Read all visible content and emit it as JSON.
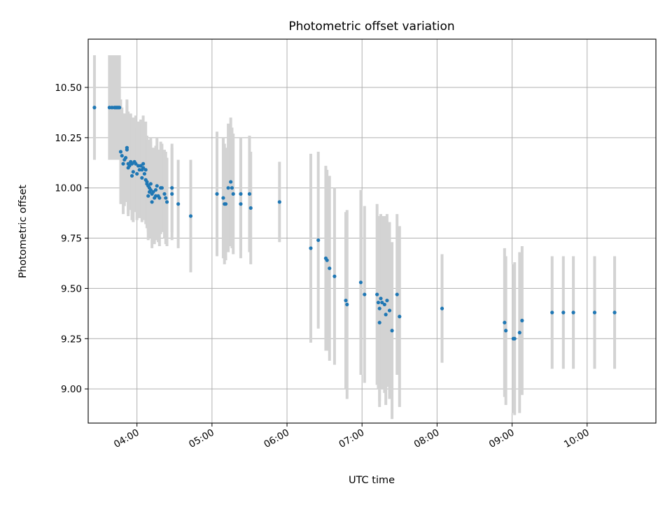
{
  "chart_data": {
    "type": "scatter",
    "title": "Photometric offset variation",
    "xlabel": "UTC time",
    "ylabel": "Photometric offset",
    "x_type": "time",
    "xlim": [
      "03:21",
      "10:55"
    ],
    "ylim": [
      8.83,
      10.74
    ],
    "x_ticks": [
      "04:00",
      "05:00",
      "06:00",
      "07:00",
      "08:00",
      "09:00",
      "10:00"
    ],
    "y_ticks": [
      9.0,
      9.25,
      9.5,
      9.75,
      10.0,
      10.25,
      10.5
    ],
    "y_tick_labels": [
      "9.00",
      "9.25",
      "9.50",
      "9.75",
      "10.00",
      "10.25",
      "10.50"
    ],
    "grid": true,
    "colors": {
      "points": "#1f77b4",
      "error_bars": "#d3d3d3",
      "grid": "#b0b0b0"
    },
    "series": [
      {
        "points": [
          [
            "03:26",
            10.4,
            0.26
          ],
          [
            "03:38",
            10.4,
            0.26
          ],
          [
            "03:40",
            10.4,
            0.26
          ],
          [
            "03:42",
            10.4,
            0.26
          ],
          [
            "03:43",
            10.4,
            0.26
          ],
          [
            "03:44",
            10.4,
            0.26
          ],
          [
            "03:45",
            10.4,
            0.26
          ],
          [
            "03:46",
            10.4,
            0.26
          ],
          [
            "03:47",
            10.18,
            0.26
          ],
          [
            "03:48",
            10.16,
            0.24
          ],
          [
            "03:49",
            10.12,
            0.25
          ],
          [
            "03:50",
            10.14,
            0.23
          ],
          [
            "03:51",
            10.15,
            0.22
          ],
          [
            "03:52",
            10.2,
            0.24
          ],
          [
            "03:52",
            10.19,
            0.22
          ],
          [
            "03:53",
            10.12,
            0.26
          ],
          [
            "03:53",
            10.1,
            0.23
          ],
          [
            "03:54",
            10.11,
            0.21
          ],
          [
            "03:55",
            10.13,
            0.24
          ],
          [
            "03:56",
            10.06,
            0.22
          ],
          [
            "03:56",
            10.12,
            0.23
          ],
          [
            "03:57",
            10.08,
            0.25
          ],
          [
            "03:58",
            10.13,
            0.22
          ],
          [
            "03:59",
            10.12,
            0.24
          ],
          [
            "04:00",
            10.07,
            0.23
          ],
          [
            "04:01",
            10.11,
            0.22
          ],
          [
            "04:02",
            10.09,
            0.24
          ],
          [
            "04:03",
            10.11,
            0.23
          ],
          [
            "04:04",
            10.05,
            0.22
          ],
          [
            "04:04",
            10.09,
            0.23
          ],
          [
            "04:05",
            10.12,
            0.24
          ],
          [
            "04:05",
            10.1,
            0.22
          ],
          [
            "04:06",
            10.07,
            0.23
          ],
          [
            "04:07",
            10.04,
            0.22
          ],
          [
            "04:07",
            10.09,
            0.24
          ],
          [
            "04:08",
            10.03,
            0.23
          ],
          [
            "04:08",
            10.02,
            0.22
          ],
          [
            "04:09",
            10.01,
            0.23
          ],
          [
            "04:09",
            9.96,
            0.22
          ],
          [
            "04:10",
            10.0,
            0.23
          ],
          [
            "04:10",
            9.98,
            0.22
          ],
          [
            "04:11",
            10.02,
            0.23
          ],
          [
            "04:11",
            9.99,
            0.24
          ],
          [
            "04:12",
            9.97,
            0.22
          ],
          [
            "04:12",
            9.93,
            0.23
          ],
          [
            "04:13",
            9.98,
            0.22
          ],
          [
            "04:14",
            9.95,
            0.23
          ],
          [
            "04:15",
            9.99,
            0.22
          ],
          [
            "04:15",
            9.96,
            0.22
          ],
          [
            "04:16",
            10.01,
            0.24
          ],
          [
            "04:17",
            9.96,
            0.23
          ],
          [
            "04:18",
            9.95,
            0.24
          ],
          [
            "04:19",
            10.0,
            0.23
          ],
          [
            "04:20",
            10.0,
            0.22
          ],
          [
            "04:22",
            9.97,
            0.22
          ],
          [
            "04:23",
            9.95,
            0.23
          ],
          [
            "04:24",
            9.93,
            0.22
          ],
          [
            "04:28",
            10.0,
            0.22
          ],
          [
            "04:28",
            9.97,
            0.23
          ],
          [
            "04:33",
            9.92,
            0.22
          ],
          [
            "04:43",
            9.86,
            0.28
          ],
          [
            "05:04",
            9.97,
            0.31
          ],
          [
            "05:09",
            9.95,
            0.3
          ],
          [
            "05:10",
            9.92,
            0.3
          ],
          [
            "05:11",
            9.92,
            0.28
          ],
          [
            "05:13",
            10.0,
            0.32
          ],
          [
            "05:15",
            10.03,
            0.32
          ],
          [
            "05:16",
            10.0,
            0.3
          ],
          [
            "05:17",
            9.97,
            0.3
          ],
          [
            "05:23",
            9.97,
            0.28
          ],
          [
            "05:23",
            9.92,
            0.27
          ],
          [
            "05:30",
            9.97,
            0.29
          ],
          [
            "05:31",
            9.9,
            0.28
          ],
          [
            "05:54",
            9.93,
            0.2
          ],
          [
            "06:19",
            9.7,
            0.47
          ],
          [
            "06:25",
            9.74,
            0.44
          ],
          [
            "06:31",
            9.65,
            0.46
          ],
          [
            "06:32",
            9.64,
            0.45
          ],
          [
            "06:34",
            9.6,
            0.46
          ],
          [
            "06:38",
            9.56,
            0.44
          ],
          [
            "06:47",
            9.44,
            0.44
          ],
          [
            "06:48",
            9.42,
            0.47
          ],
          [
            "06:59",
            9.53,
            0.46
          ],
          [
            "07:02",
            9.47,
            0.44
          ],
          [
            "07:12",
            9.47,
            0.45
          ],
          [
            "07:13",
            9.43,
            0.43
          ],
          [
            "07:14",
            9.33,
            0.42
          ],
          [
            "07:14",
            9.4,
            0.46
          ],
          [
            "07:15",
            9.45,
            0.42
          ],
          [
            "07:16",
            9.43,
            0.43
          ],
          [
            "07:18",
            9.42,
            0.44
          ],
          [
            "07:19",
            9.37,
            0.45
          ],
          [
            "07:20",
            9.44,
            0.43
          ],
          [
            "07:22",
            9.39,
            0.44
          ],
          [
            "07:24",
            9.29,
            0.44
          ],
          [
            "07:28",
            9.47,
            0.4
          ],
          [
            "07:30",
            9.36,
            0.45
          ],
          [
            "08:04",
            9.4,
            0.27
          ],
          [
            "08:54",
            9.33,
            0.37
          ],
          [
            "08:55",
            9.29,
            0.37
          ],
          [
            "09:01",
            9.25,
            0.37
          ],
          [
            "09:02",
            9.25,
            0.38
          ],
          [
            "09:06",
            9.28,
            0.4
          ],
          [
            "09:08",
            9.34,
            0.37
          ],
          [
            "09:32",
            9.38,
            0.28
          ],
          [
            "09:41",
            9.38,
            0.28
          ],
          [
            "09:49",
            9.38,
            0.28
          ],
          [
            "10:06",
            9.38,
            0.28
          ],
          [
            "10:22",
            9.38,
            0.28
          ]
        ]
      }
    ]
  }
}
